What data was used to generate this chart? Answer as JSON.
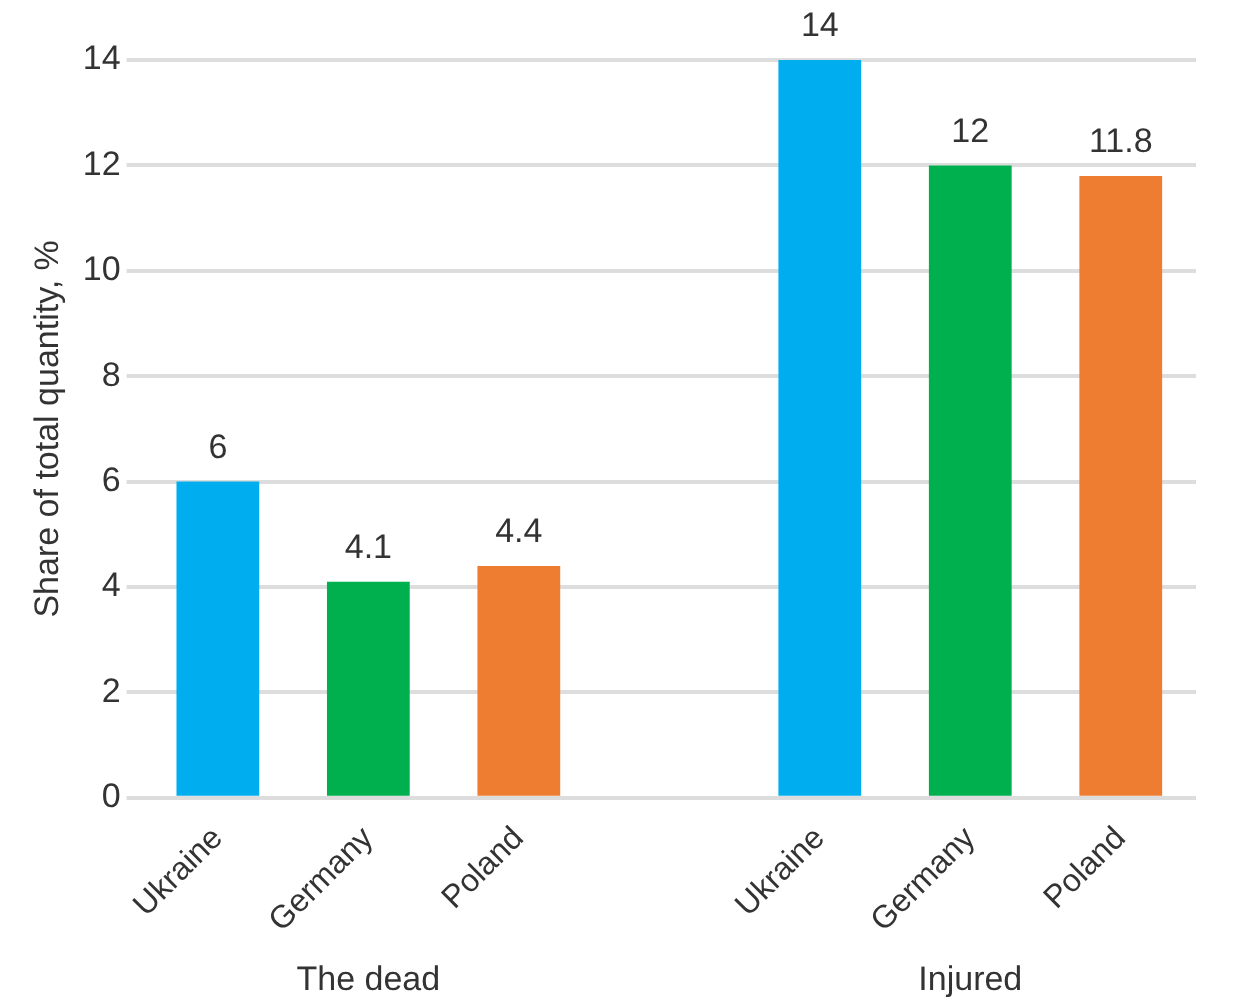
{
  "chart_data": {
    "type": "bar",
    "ylabel": "Share of total quantity, %",
    "categories": [
      "Ukraine",
      "Germany",
      "Poland",
      null,
      "Ukraine",
      "Germany",
      "Poland"
    ],
    "values": [
      6,
      4.1,
      4.4,
      null,
      14,
      12,
      11.8
    ],
    "colors": [
      "#00aeef",
      "#00b04f",
      "#ee7d31",
      null,
      "#00aeef",
      "#00b04f",
      "#ee7d31"
    ],
    "ylim": [
      0,
      14
    ],
    "yticks": [
      0,
      2,
      4,
      6,
      8,
      10,
      12,
      14
    ],
    "grid": "y",
    "legend": false,
    "data_labels": true,
    "annotations": [
      "The dead",
      "Injured"
    ]
  }
}
